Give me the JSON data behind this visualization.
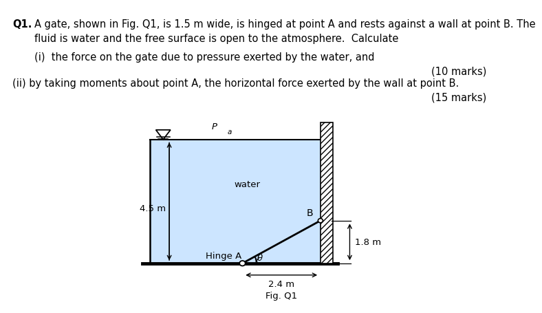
{
  "water_color": "#cce5ff",
  "bg_color": "#ffffff",
  "fig_label": "Fig. Q1",
  "label_45m": "4.5 m",
  "label_18m": "1.8 m",
  "label_24m": "2.4 m",
  "label_water": "water",
  "label_Pa": "P",
  "label_Pa_sub": "a",
  "label_B": "B",
  "label_hingeA": "Hinge A",
  "label_theta": "θ",
  "q1_bold": "Q1.",
  "q1_text1": "  A gate, shown in Fig. Q1, is 1.5 m wide, is hinged at point A and rests against a wall at point B. The",
  "q1_text2": "fluid is water and the free surface is open to the atmosphere.  Calculate",
  "sub1": "(i)  the force on the gate due to pressure exerted by the water, and",
  "marks1": "(10 marks)",
  "sub2": "(ii) by taking moments about point A, the horizontal force exerted by the wall at point B.",
  "marks2": "(15 marks)"
}
